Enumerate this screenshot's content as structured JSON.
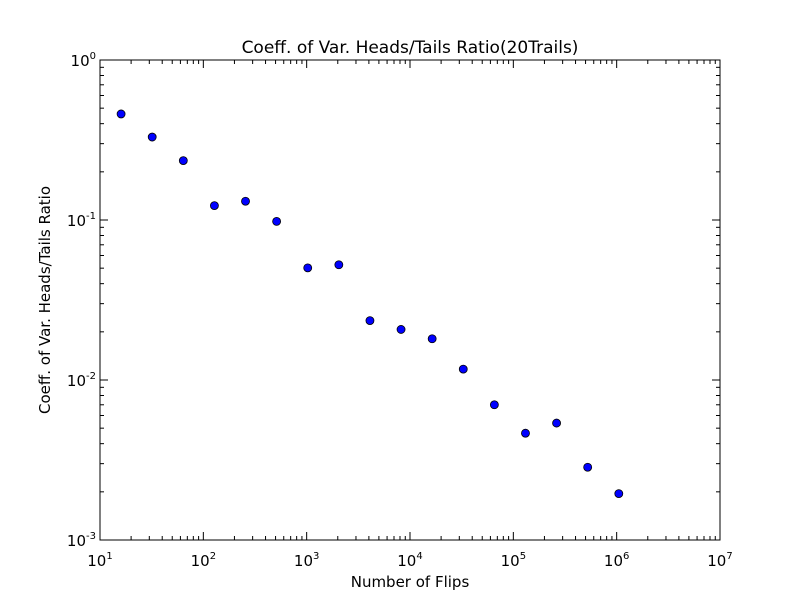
{
  "chart_data": {
    "type": "scatter",
    "title": "Coeff. of Var. Heads/Tails Ratio(20Trails)",
    "xlabel": "Number of Flips",
    "ylabel": "Coeff. of Var. Heads/Tails Ratio",
    "xscale": "log",
    "yscale": "log",
    "xlim": [
      10,
      10000000
    ],
    "ylim": [
      0.001,
      1
    ],
    "grid": false,
    "x_ticks": [
      {
        "base": "10",
        "exp": "1"
      },
      {
        "base": "10",
        "exp": "2"
      },
      {
        "base": "10",
        "exp": "3"
      },
      {
        "base": "10",
        "exp": "4"
      },
      {
        "base": "10",
        "exp": "5"
      },
      {
        "base": "10",
        "exp": "6"
      },
      {
        "base": "10",
        "exp": "7"
      }
    ],
    "y_ticks": [
      {
        "base": "10",
        "exp": "-3"
      },
      {
        "base": "10",
        "exp": "-2"
      },
      {
        "base": "10",
        "exp": "-1"
      },
      {
        "base": "10",
        "exp": "0"
      }
    ],
    "marker_color": "#0000ff",
    "series": [
      {
        "points": [
          [
            16,
            0.46
          ],
          [
            32,
            0.33
          ],
          [
            64,
            0.235
          ],
          [
            128,
            0.123
          ],
          [
            256,
            0.131
          ],
          [
            512,
            0.098
          ],
          [
            1024,
            0.0502
          ],
          [
            2048,
            0.0525
          ],
          [
            4096,
            0.0235
          ],
          [
            8192,
            0.0207
          ],
          [
            16384,
            0.0181
          ],
          [
            32768,
            0.0117
          ],
          [
            65536,
            0.007
          ],
          [
            131072,
            0.00465
          ],
          [
            262144,
            0.00538
          ],
          [
            524288,
            0.00285
          ],
          [
            1048576,
            0.00195
          ]
        ]
      }
    ]
  }
}
